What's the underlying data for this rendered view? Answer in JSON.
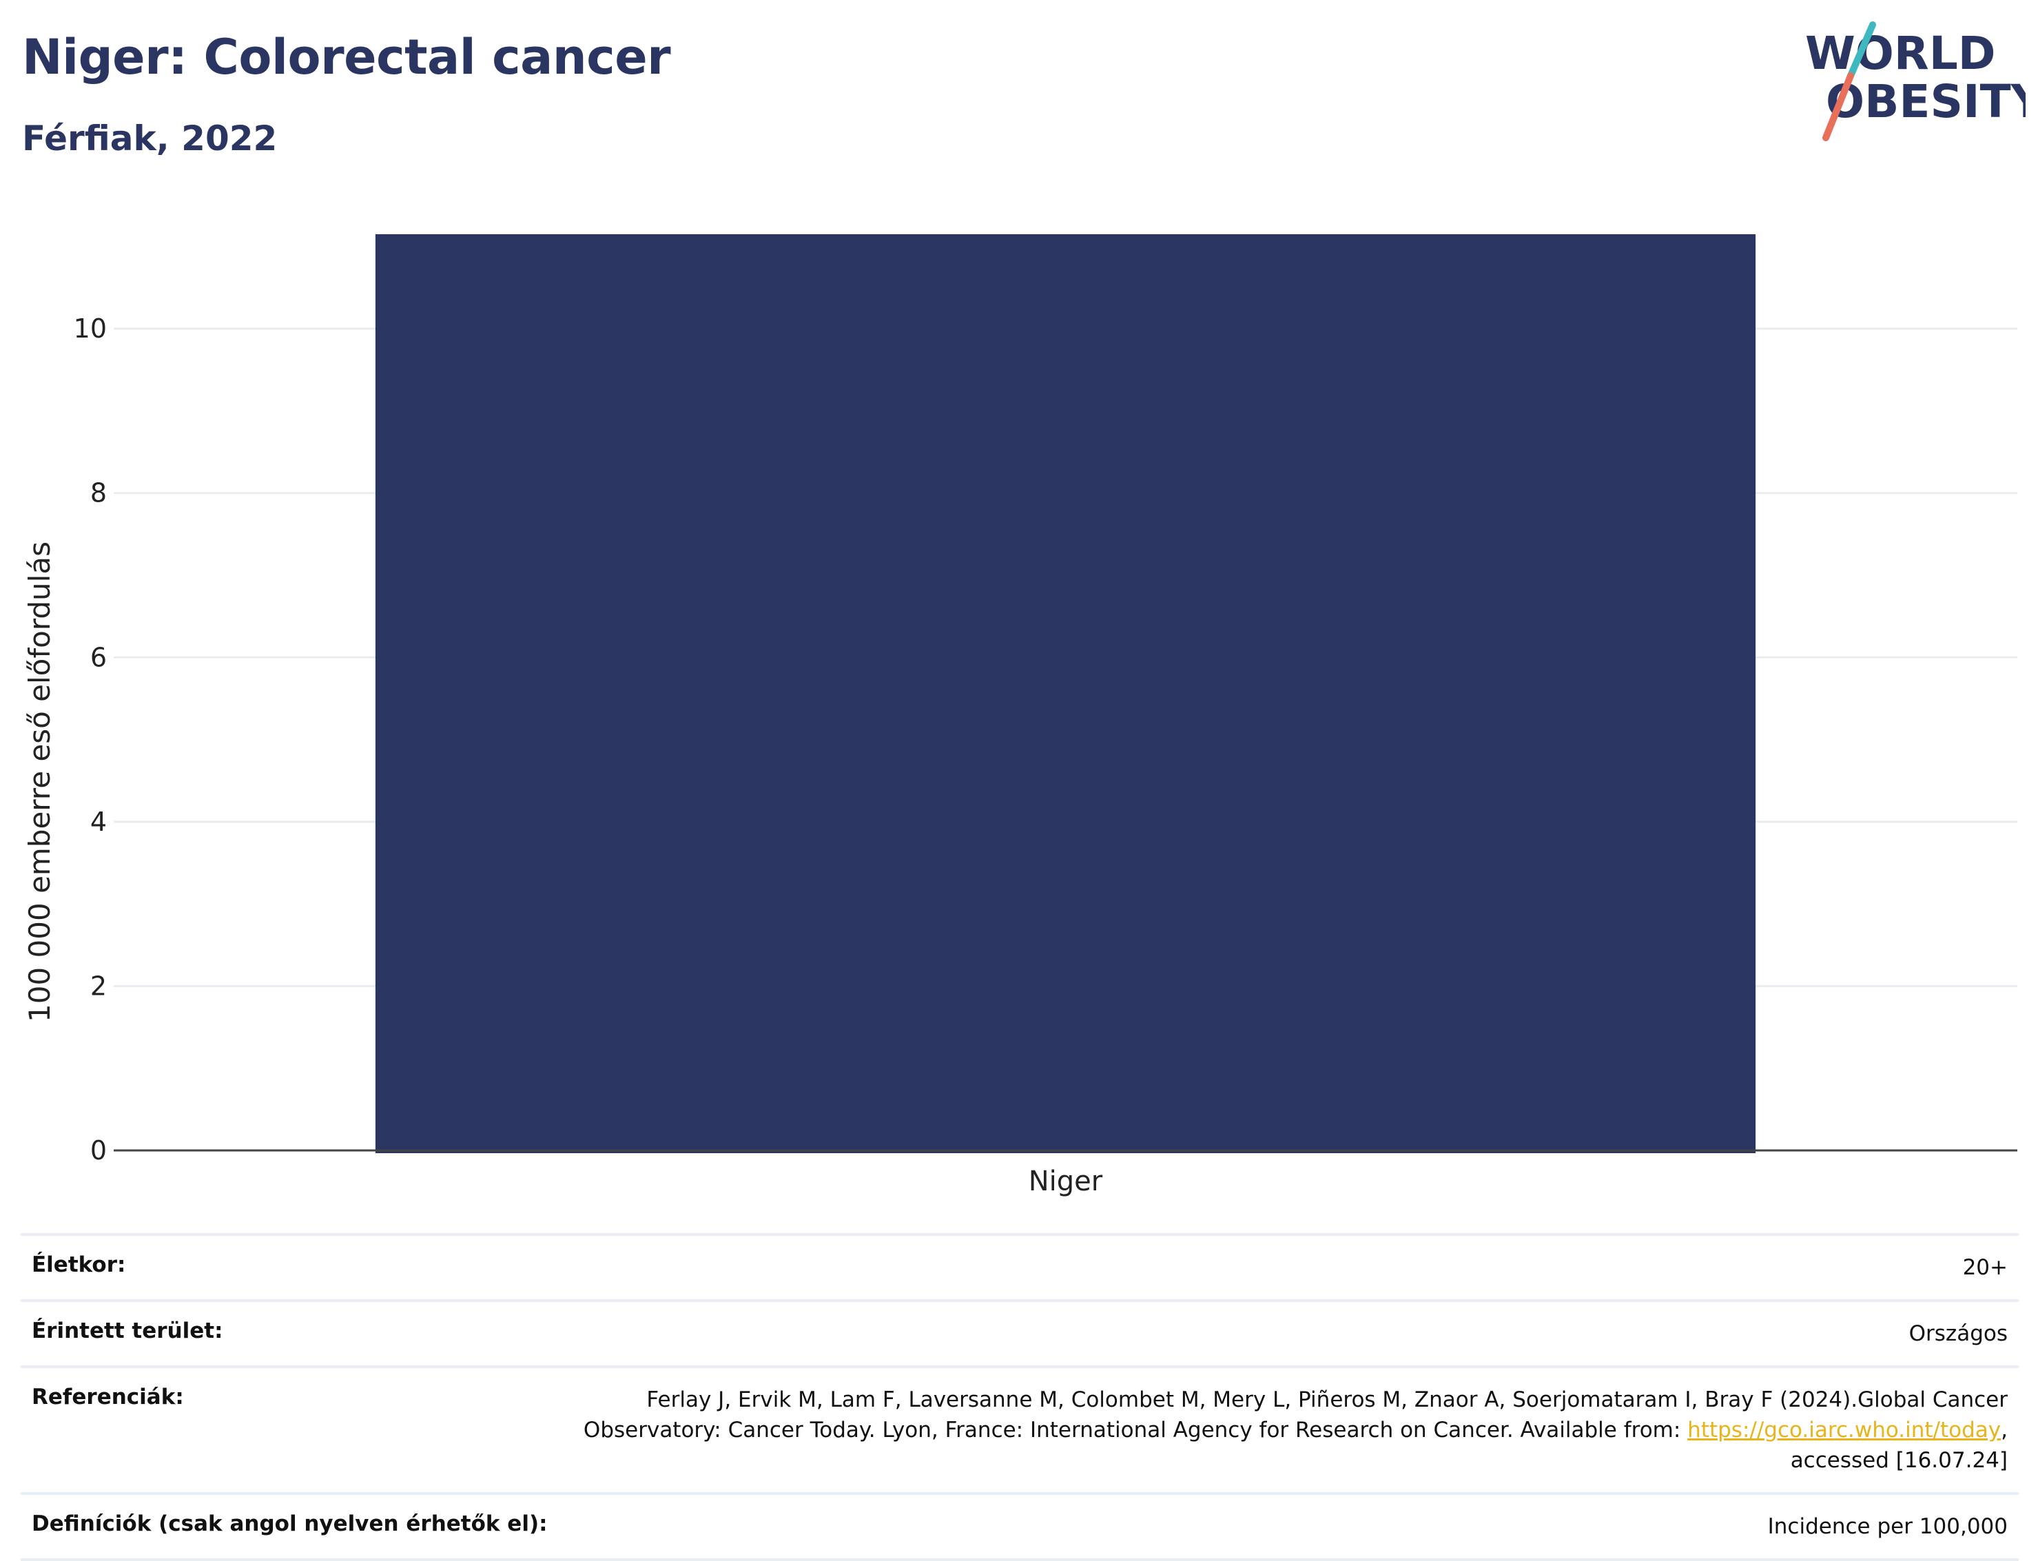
{
  "header": {
    "title": "Niger: Colorectal cancer",
    "subtitle": "Férfiak, 2022"
  },
  "logo": {
    "line1": "WORLD",
    "line2": "OBESITY",
    "colors": {
      "text": "#2b3561",
      "slash_top": "#3fb8c0",
      "slash_bottom": "#e8705a"
    }
  },
  "chart_data": {
    "type": "bar",
    "categories": [
      "Niger"
    ],
    "values": [
      11.15
    ],
    "ylabel": "100 000 emberre eső előfordulás",
    "xlabel": "",
    "ylim": [
      0,
      11.15
    ],
    "yticks": [
      0,
      2,
      4,
      6,
      8,
      10
    ],
    "grid": true,
    "bar_color": "#2b3561",
    "grid_color": "#e8edf2"
  },
  "info_table": {
    "rows": [
      {
        "label": "Életkor:",
        "value": "20+"
      },
      {
        "label": "Érintett terület:",
        "value": "Országos"
      },
      {
        "label": "Referenciák:",
        "value_before": "Ferlay J, Ervik M, Lam F, Laversanne M, Colombet M, Mery L, Piñeros M, Znaor A, Soerjomataram I, Bray F (2024).Global Cancer Observatory: Cancer Today. Lyon, France: International Agency for Research on Cancer. Available from: ",
        "link": "https://gco.iarc.who.int/today",
        "value_after": ", accessed [16.07.24]"
      },
      {
        "label": "Definíciók (csak angol nyelven érhetők el):",
        "value": "Incidence per 100,000"
      }
    ]
  }
}
